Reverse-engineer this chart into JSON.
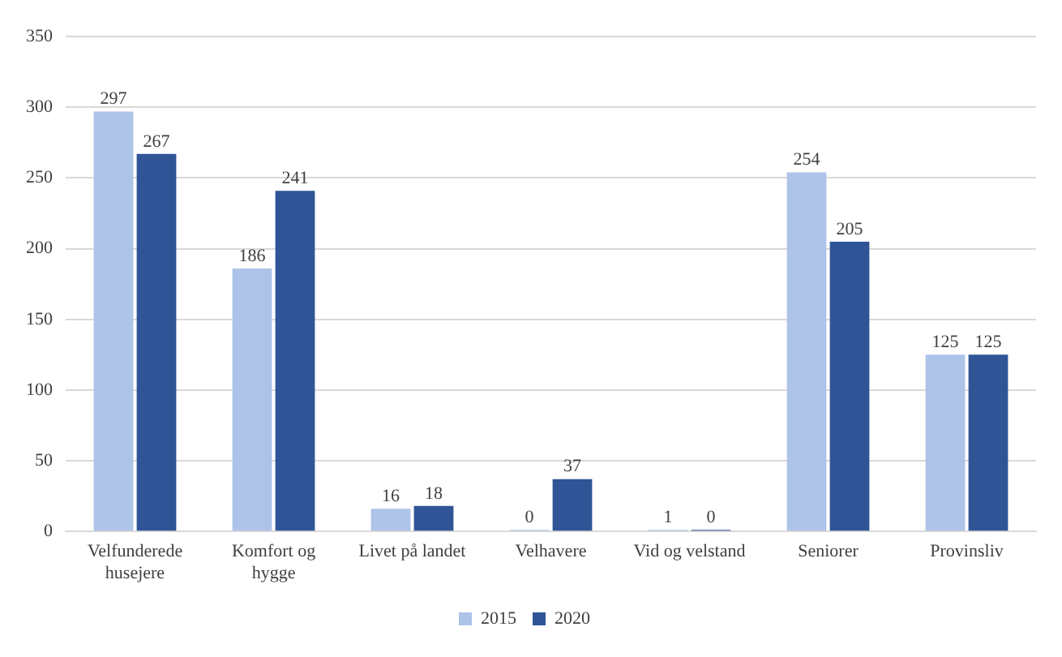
{
  "chart_data": {
    "type": "bar",
    "categories": [
      "Velfunderede husejere",
      "Komfort og hygge",
      "Livet på landet",
      "Velhavere",
      "Vid og velstand",
      "Seniorer",
      "Provinsliv"
    ],
    "series": [
      {
        "name": "2015",
        "color": "#aec3e8",
        "values": [
          297,
          186,
          16,
          0,
          1,
          254,
          125
        ]
      },
      {
        "name": "2020",
        "color": "#2f5597",
        "values": [
          267,
          241,
          18,
          37,
          0,
          205,
          125
        ]
      }
    ],
    "ylim": [
      0,
      350
    ],
    "yticks": [
      0,
      50,
      100,
      150,
      200,
      250,
      300,
      350
    ],
    "grid": "y",
    "legend": "bottom",
    "data_labels": true
  }
}
